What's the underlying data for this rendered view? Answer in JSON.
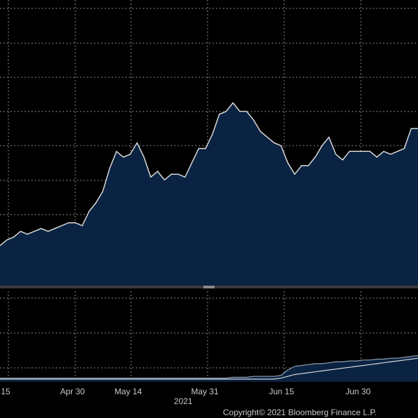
{
  "chart_data": [
    {
      "type": "area",
      "panel": "main",
      "title": "",
      "xlabel": "",
      "ylabel": "",
      "grid": true,
      "fill_color": "#0b2342",
      "line_color": "#d8d8d8",
      "x_tick_labels": [
        "15",
        "Apr 30",
        "May 14",
        "May 31",
        "Jun 15",
        "Jun 30"
      ],
      "year_label": "2021",
      "ylim": [
        0,
        100
      ],
      "series": [
        {
          "values": [
            14,
            16,
            17,
            19,
            18,
            19,
            20,
            19,
            20,
            21,
            22,
            22,
            21,
            26,
            29,
            33,
            41,
            47,
            45,
            46,
            50,
            45,
            38,
            40,
            37,
            39,
            39,
            38,
            43,
            48,
            48,
            53,
            60,
            61,
            64,
            61,
            61,
            58,
            54,
            52,
            50,
            49,
            43,
            39,
            42,
            42,
            45,
            49,
            52,
            46,
            44,
            47,
            47,
            47,
            47,
            45,
            47,
            46,
            47,
            48,
            55,
            55
          ]
        }
      ]
    },
    {
      "type": "area",
      "panel": "lower",
      "title": "",
      "xlabel": "",
      "ylabel": "",
      "grid": true,
      "ylim": [
        0,
        100
      ],
      "fill_color": "#0b2342",
      "series": [
        {
          "line_color": "#8f9fb0",
          "values": [
            4,
            4,
            4,
            4,
            4,
            4,
            4,
            4,
            4,
            4,
            4,
            4,
            4,
            4,
            4,
            4,
            4,
            4,
            4,
            4,
            4,
            4,
            4,
            4,
            4,
            4,
            4,
            4,
            4,
            4,
            4,
            4,
            4,
            4,
            5,
            5,
            5,
            6,
            6,
            6,
            6,
            7,
            13,
            17,
            18,
            19,
            20,
            20,
            21,
            22,
            22,
            23,
            23,
            24,
            24,
            25,
            25,
            26,
            26,
            27,
            28,
            29
          ]
        },
        {
          "line_color": "#d8d8d8",
          "values": [
            3,
            3,
            3,
            3,
            3,
            3,
            3,
            3,
            3,
            3,
            3,
            3,
            3,
            3,
            3,
            3,
            3,
            3,
            3,
            3,
            3,
            3,
            3,
            3,
            3,
            3,
            3,
            3,
            3,
            3,
            3,
            3,
            3,
            3,
            3,
            3,
            3,
            3,
            3,
            3,
            3,
            4,
            6,
            8,
            9,
            10,
            11,
            12,
            13,
            14,
            15,
            16,
            17,
            18,
            19,
            20,
            21,
            22,
            23,
            24,
            25,
            26
          ]
        }
      ]
    }
  ],
  "copyright": "Copyright© 2021 Bloomberg Finance L.P."
}
